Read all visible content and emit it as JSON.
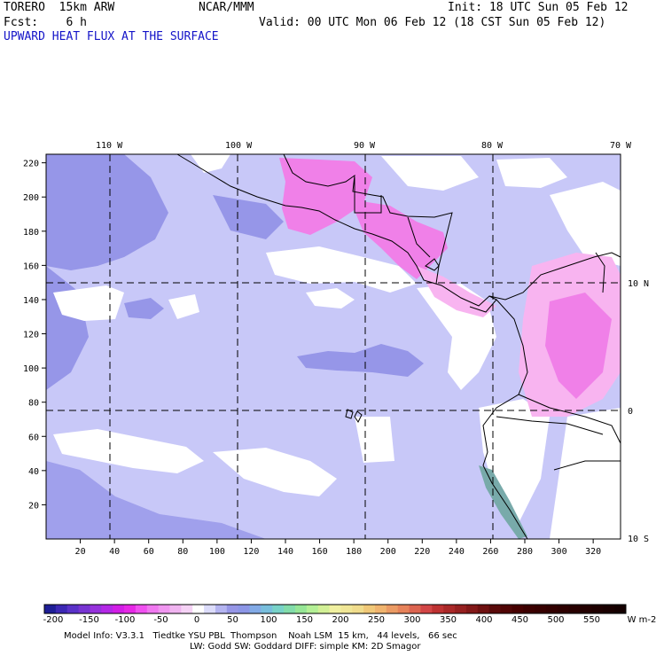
{
  "header": {
    "model": "TORERO  15km ARW",
    "org": "NCAR/MMM",
    "init": "Init: 18 UTC Sun 05 Feb 12",
    "fcst": "Fcst:    6 h",
    "valid": "Valid: 00 UTC Mon 06 Feb 12 (18 CST Sun 05 Feb 12)",
    "field": "UPWARD HEAT FLUX AT THE SURFACE"
  },
  "map": {
    "top_labels": [
      "110 W",
      "100 W",
      "90 W",
      "80 W",
      "70 W"
    ],
    "right_labels": [
      "10 N",
      "0",
      "10 S"
    ],
    "left_ticks": [
      "220",
      "200",
      "180",
      "160",
      "140",
      "120",
      "100",
      "80",
      "60",
      "40",
      "20"
    ],
    "bottom_ticks": [
      "20",
      "40",
      "60",
      "80",
      "100",
      "120",
      "140",
      "160",
      "180",
      "200",
      "220",
      "240",
      "260",
      "280",
      "300",
      "320"
    ],
    "colors": {
      "ocean_main": "#c8c8f8",
      "ocean_dark": "#9696e8",
      "low_flux": "#ffffff",
      "high_flux": "#f8b4f0",
      "very_high_flux": "#f080e8",
      "land_coast": "#8c8ce0"
    }
  },
  "colorbar": {
    "labels": [
      "-200",
      "-150",
      "-100",
      "-50",
      "0",
      "50",
      "100",
      "150",
      "200",
      "250",
      "300",
      "350",
      "400",
      "450",
      "500",
      "550"
    ],
    "unit": "W m-2",
    "colors": [
      "#1e1e96",
      "#3c28b4",
      "#5a32c8",
      "#7834d2",
      "#9632dc",
      "#b428e6",
      "#d21ee6",
      "#e628e6",
      "#f050f0",
      "#f078f0",
      "#f096f0",
      "#f0b4f0",
      "#f5d2f5",
      "#ffffff",
      "#dcdcfa",
      "#b4b4f0",
      "#9696e6",
      "#8c96e6",
      "#82aae6",
      "#78bedc",
      "#78d2c8",
      "#82dcaa",
      "#96e696",
      "#b4f096",
      "#d2f096",
      "#f0f0a0",
      "#f0e696",
      "#f0dc8c",
      "#f0c878",
      "#f0b46e",
      "#eb9b64",
      "#e6825a",
      "#dc6450",
      "#d24646",
      "#be3232",
      "#aa2828",
      "#962020",
      "#821818",
      "#6e1010",
      "#5a0a0a",
      "#500505",
      "#460000",
      "#3c0000",
      "#370000",
      "#320000",
      "#2d0000",
      "#280000",
      "#230000",
      "#1e0000",
      "#190000",
      "#140000"
    ]
  },
  "footer": {
    "line1": "Model Info: V3.3.1   Tiedtke YSU PBL  Thompson    Noah LSM  15 km,   44 levels,   66 sec",
    "line2": "LW: Godd SW: Goddard DIFF: simple KM: 2D Smagor"
  }
}
